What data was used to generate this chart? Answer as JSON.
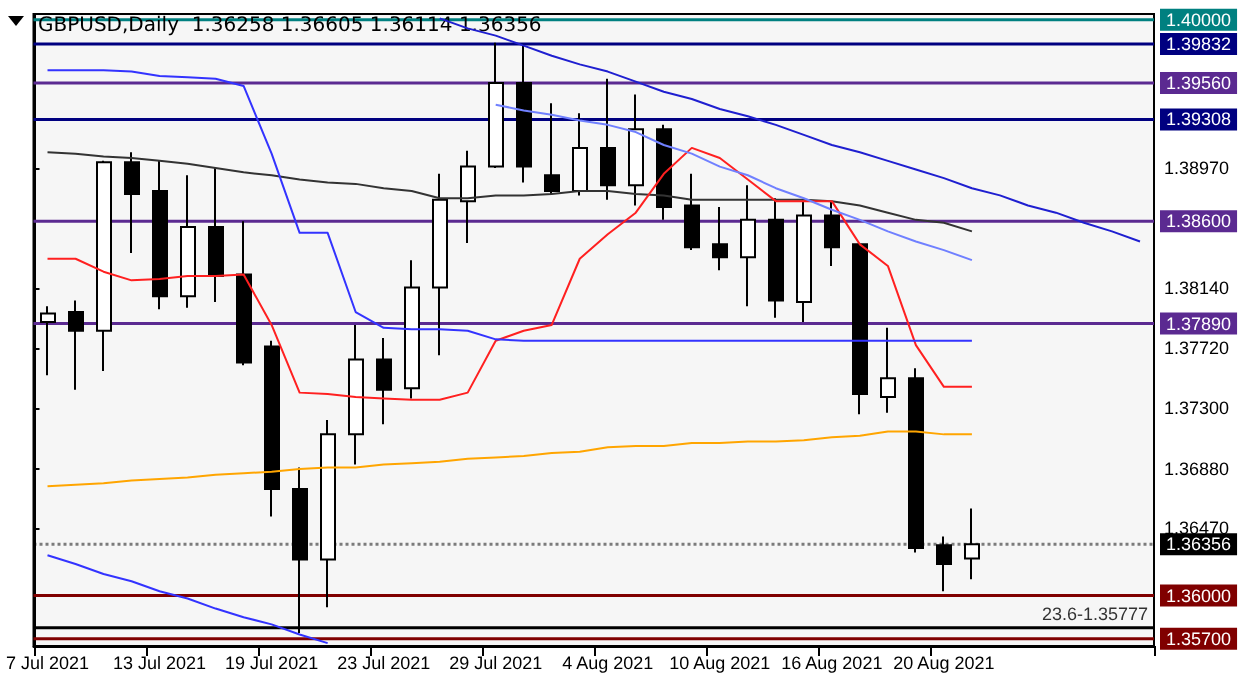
{
  "chart_data": {
    "type": "candlestick",
    "title": "GBPUSD,Daily  1.36258 1.36605 1.36114 1.36356",
    "categories": [
      "7 Jul 2021",
      null,
      null,
      null,
      "13 Jul 2021",
      null,
      null,
      null,
      "19 Jul 2021",
      null,
      null,
      null,
      "23 Jul 2021",
      null,
      null,
      null,
      "29 Jul 2021",
      null,
      null,
      null,
      "4 Aug 2021",
      null,
      null,
      null,
      "10 Aug 2021",
      null,
      null,
      null,
      "16 Aug 2021",
      null,
      null,
      null,
      "20 Aug 2021",
      null,
      null,
      null,
      null,
      null,
      null,
      null
    ],
    "ohlc": [
      [
        1.379,
        1.3801,
        1.3753,
        1.3796
      ],
      [
        1.3797,
        1.3805,
        1.3743,
        1.3784
      ],
      [
        1.3784,
        1.3902,
        1.3756,
        1.3901
      ],
      [
        1.3901,
        1.3908,
        1.3838,
        1.3879
      ],
      [
        1.3881,
        1.3902,
        1.3799,
        1.3808
      ],
      [
        1.3808,
        1.3892,
        1.38,
        1.3856
      ],
      [
        1.3856,
        1.3897,
        1.3804,
        1.3822
      ],
      [
        1.3823,
        1.386,
        1.376,
        1.3762
      ],
      [
        1.3773,
        1.3777,
        1.3655,
        1.3674
      ],
      [
        1.3674,
        1.3689,
        1.3574,
        1.3625
      ],
      [
        1.3625,
        1.3722,
        1.3592,
        1.3712
      ],
      [
        1.3712,
        1.3788,
        1.3691,
        1.3764
      ],
      [
        1.3764,
        1.3779,
        1.3719,
        1.3743
      ],
      [
        1.3744,
        1.3833,
        1.3737,
        1.3814
      ],
      [
        1.3814,
        1.3893,
        1.3767,
        1.3875
      ],
      [
        1.3874,
        1.3909,
        1.3845,
        1.3898
      ],
      [
        1.3898,
        1.3984,
        1.3897,
        1.3956
      ],
      [
        1.3956,
        1.3983,
        1.3887,
        1.3898
      ],
      [
        1.3892,
        1.3942,
        1.3879,
        1.3881
      ],
      [
        1.3881,
        1.3935,
        1.3878,
        1.3911
      ],
      [
        1.3911,
        1.3959,
        1.3875,
        1.3885
      ],
      [
        1.3885,
        1.3948,
        1.3871,
        1.3924
      ],
      [
        1.3924,
        1.3927,
        1.3861,
        1.387
      ],
      [
        1.3871,
        1.3893,
        1.384,
        1.3842
      ],
      [
        1.3844,
        1.387,
        1.3826,
        1.3835
      ],
      [
        1.3835,
        1.3885,
        1.3801,
        1.3861
      ],
      [
        1.3861,
        1.3876,
        1.3793,
        1.3805
      ],
      [
        1.3804,
        1.3874,
        1.379,
        1.3864
      ],
      [
        1.3864,
        1.3874,
        1.3829,
        1.3842
      ],
      [
        1.3844,
        1.3845,
        1.3726,
        1.374
      ],
      [
        1.3738,
        1.3786,
        1.3727,
        1.3751
      ],
      [
        1.3751,
        1.3758,
        1.363,
        1.3633
      ],
      [
        1.3635,
        1.3641,
        1.3603,
        1.3622
      ],
      [
        1.36258,
        1.36605,
        1.36114,
        1.36356
      ],
      null,
      null,
      null,
      null,
      null,
      null
    ],
    "series": [
      {
        "type": "line",
        "color": "#333333",
        "values": [
          1.3908,
          1.3907,
          1.3905,
          1.3904,
          1.3902,
          1.39,
          1.3897,
          1.3894,
          1.3892,
          1.3889,
          1.3887,
          1.3886,
          1.3883,
          1.3881,
          1.3876,
          1.3876,
          1.3878,
          1.3878,
          1.3879,
          1.3881,
          1.3881,
          1.3879,
          1.3878,
          1.3875,
          1.3875,
          1.3875,
          1.3875,
          1.3875,
          1.3874,
          1.3871,
          1.3866,
          1.3861,
          1.3859,
          1.3853,
          null,
          null,
          null,
          null,
          null,
          null
        ]
      },
      {
        "type": "line",
        "color": "#ffa500",
        "values": [
          1.3676,
          1.3677,
          1.3678,
          1.368,
          1.3681,
          1.3682,
          1.3684,
          1.3685,
          1.3686,
          1.3688,
          1.3689,
          1.3689,
          1.3691,
          1.3692,
          1.3693,
          1.3695,
          1.3696,
          1.3697,
          1.3699,
          1.37,
          1.3703,
          1.3704,
          1.3704,
          1.3706,
          1.3706,
          1.3707,
          1.3707,
          1.3708,
          1.371,
          1.3711,
          1.3714,
          1.3714,
          1.3712,
          1.3712,
          null,
          null,
          null,
          null,
          null,
          null
        ]
      },
      {
        "type": "line",
        "color": "#ff2020",
        "values": [
          1.3834,
          1.3834,
          1.3825,
          1.3819,
          1.382,
          1.3822,
          1.3822,
          1.3823,
          1.3788,
          1.3741,
          1.374,
          1.3738,
          1.3737,
          1.3736,
          1.3736,
          1.3741,
          1.3777,
          1.3784,
          1.3788,
          1.3834,
          1.3851,
          1.3866,
          1.3893,
          1.3911,
          1.3904,
          1.3889,
          1.3874,
          1.3874,
          1.3874,
          1.3844,
          1.3829,
          1.3774,
          1.3745,
          1.3745,
          null,
          null,
          null,
          null,
          null,
          null
        ]
      },
      {
        "type": "line",
        "color": "#3333ff",
        "values": [
          1.3965,
          1.3965,
          1.3965,
          1.3964,
          1.3961,
          1.396,
          1.3959,
          1.3954,
          1.3907,
          1.3852,
          1.3852,
          1.3797,
          1.3786,
          1.3785,
          1.3785,
          1.3784,
          1.3778,
          1.3777,
          1.3777,
          1.3777,
          1.3777,
          1.3777,
          1.3777,
          1.3777,
          1.3777,
          1.3777,
          1.3777,
          1.3777,
          1.3777,
          1.3777,
          1.3777,
          1.3777,
          1.3777,
          1.3777,
          null,
          null,
          null,
          null,
          null,
          null
        ]
      },
      {
        "type": "line",
        "color": "#1f1fd0",
        "values": [
          null,
          null,
          null,
          null,
          null,
          null,
          null,
          null,
          null,
          null,
          null,
          null,
          null,
          null,
          1.4001,
          1.3994,
          1.3989,
          1.3982,
          1.3975,
          1.3969,
          1.3964,
          1.3957,
          1.395,
          1.3945,
          1.3938,
          1.3933,
          1.3927,
          1.392,
          1.3913,
          1.3908,
          1.3902,
          1.3896,
          1.389,
          1.3883,
          1.3878,
          1.3871,
          1.3866,
          1.3859,
          1.3853,
          1.3846
        ]
      },
      {
        "type": "line",
        "color": "#7080ff",
        "values": [
          null,
          null,
          null,
          null,
          null,
          null,
          null,
          null,
          null,
          null,
          null,
          null,
          null,
          null,
          null,
          null,
          1.3941,
          1.3937,
          1.3934,
          1.393,
          1.3927,
          1.3922,
          1.3913,
          1.3907,
          1.3898,
          1.3892,
          1.3883,
          1.3876,
          1.3868,
          1.3861,
          1.3853,
          1.3846,
          1.384,
          1.3833,
          null,
          null,
          null,
          null,
          null,
          null
        ]
      },
      {
        "type": "line",
        "color": "#3333ff",
        "values": [
          1.3628,
          1.3622,
          1.3615,
          1.361,
          1.3603,
          1.3598,
          1.3591,
          1.3585,
          1.358,
          1.3573,
          1.3567,
          null,
          null,
          null,
          null,
          null,
          null,
          null,
          null,
          null,
          null,
          null,
          null,
          null,
          null,
          null,
          null,
          null,
          null,
          null,
          null,
          null,
          null,
          null,
          null,
          null,
          null,
          null,
          null,
          null
        ]
      }
    ],
    "ylim": [
      1.3565,
      1.4004
    ],
    "yticks": [
      {
        "value": 1.3897,
        "label": "1.38970"
      },
      {
        "value": 1.3814,
        "label": "1.38140"
      },
      {
        "value": 1.3772,
        "label": "1.37720"
      },
      {
        "value": 1.373,
        "label": "1.37300"
      },
      {
        "value": 1.3688,
        "label": "1.36880"
      },
      {
        "value": 1.3647,
        "label": "1.36470"
      }
    ],
    "ref_lines": [
      {
        "axis": "y",
        "value": 1.4,
        "label": "1.40000",
        "color": "#008080"
      },
      {
        "axis": "y",
        "value": 1.39832,
        "label": "1.39832",
        "color": "#000080"
      },
      {
        "axis": "y",
        "value": 1.3956,
        "label": "1.39560",
        "color": "#5b2a91"
      },
      {
        "axis": "y",
        "value": 1.39308,
        "label": "1.39308",
        "color": "#000080"
      },
      {
        "axis": "y",
        "value": 1.386,
        "label": "1.38600",
        "color": "#5b2a91"
      },
      {
        "axis": "y",
        "value": 1.3789,
        "label": "1.37890",
        "color": "#5b2a91"
      },
      {
        "axis": "y",
        "value": 1.36356,
        "label": "1.36356",
        "color": "#000000",
        "line_style": "dotted"
      },
      {
        "axis": "y",
        "value": 1.36,
        "label": "1.36000",
        "color": "#800000"
      },
      {
        "axis": "y",
        "value": 1.357,
        "label": "1.35700",
        "color": "#800000"
      },
      {
        "axis": "y",
        "value": 1.35777,
        "color": "#000000"
      }
    ],
    "annotations": [
      {
        "text": "23.6-1.35777",
        "y": 1.35777
      }
    ],
    "marker": "none",
    "grid": false
  }
}
